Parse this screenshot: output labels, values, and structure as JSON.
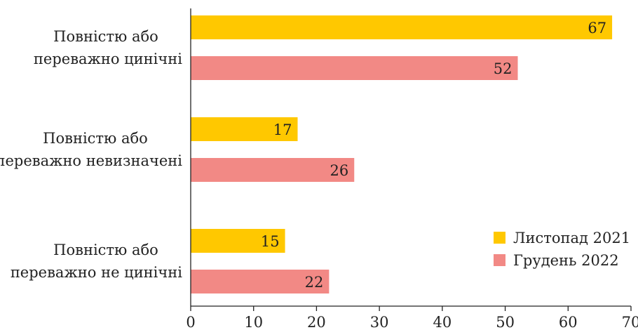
{
  "chart_data": {
    "type": "bar",
    "orientation": "horizontal",
    "categories": [
      [
        "Повністю або",
        "переважно цинічні"
      ],
      [
        "Повністю або",
        "переважно невизначені"
      ],
      [
        "Повністю або",
        "переважно не цинічні"
      ]
    ],
    "series": [
      {
        "name": "Листопад 2021",
        "color": "#FFC800",
        "values": [
          67,
          17,
          15
        ]
      },
      {
        "name": "Грудень 2022",
        "color": "#F28985",
        "values": [
          52,
          26,
          22
        ]
      }
    ],
    "xlim": [
      0,
      70
    ],
    "xticks": [
      0,
      10,
      20,
      30,
      40,
      50,
      60,
      70
    ],
    "grid": false,
    "legend_position": "bottom-right"
  }
}
